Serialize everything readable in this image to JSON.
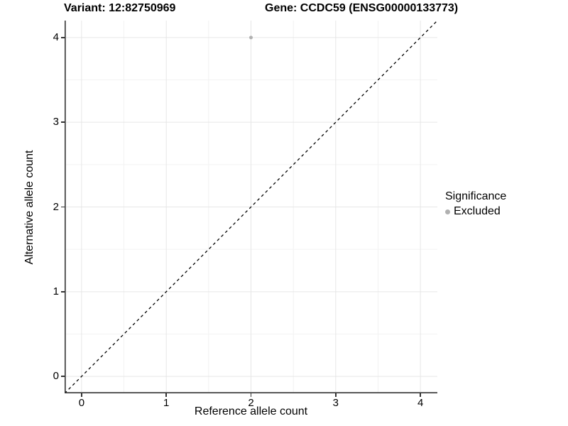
{
  "titles": {
    "variant": "Variant: 12:82750969",
    "gene": "Gene: CCDC59 (ENSG00000133773)"
  },
  "chart_data": {
    "type": "scatter",
    "title_left": "Variant: 12:82750969",
    "title_right": "Gene: CCDC59 (ENSG00000133773)",
    "xlabel": "Reference allele count",
    "ylabel": "Alternative allele count",
    "xlim": [
      -0.2,
      4.2
    ],
    "ylim": [
      -0.2,
      4.2
    ],
    "x_ticks": [
      0,
      1,
      2,
      3,
      4
    ],
    "y_ticks": [
      0,
      1,
      2,
      3,
      4
    ],
    "x_minor_ticks": [
      0.5,
      1.5,
      2.5,
      3.5
    ],
    "y_minor_ticks": [
      0.5,
      1.5,
      2.5,
      3.5
    ],
    "grid": "major and minor, light gray on white",
    "series": [
      {
        "name": "Excluded",
        "points": [
          {
            "x": 2,
            "y": 4
          }
        ]
      }
    ],
    "reference_line": {
      "kind": "identity",
      "slope": 1,
      "intercept": 0,
      "style": "dashed"
    },
    "legend": {
      "title": "Significance",
      "position": "right",
      "entries": [
        {
          "label": "Excluded",
          "color": "#b0b0b0"
        }
      ]
    }
  },
  "colors": {
    "background": "#ffffff",
    "point": "#b0b0b0",
    "grid_major": "#e6e6e6",
    "grid_minor": "#f2f2f2",
    "axis_line": "#333333",
    "tick_mark": "#333333",
    "reference_line": "#000000",
    "text": "#000000"
  }
}
